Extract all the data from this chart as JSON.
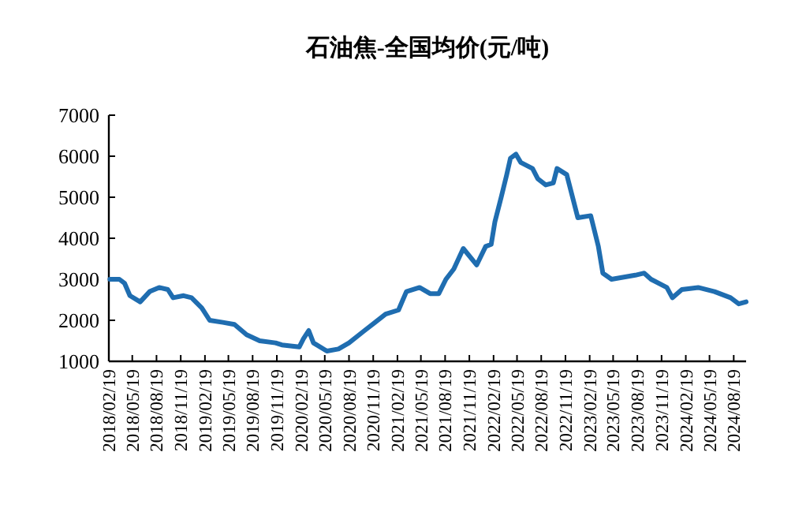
{
  "chart_data": {
    "type": "line",
    "title": "石油焦-全国均价(元/吨)",
    "x": [
      "2018-02-23",
      "2018-03-31",
      "2018-04-20",
      "2018-05-10",
      "2018-06-18",
      "2018-07-24",
      "2018-08-29",
      "2018-10-01",
      "2018-10-21",
      "2018-11-30",
      "2018-12-30",
      "2019-02-07",
      "2019-03-09",
      "2019-04-28",
      "2019-06-11",
      "2019-07-27",
      "2019-09-15",
      "2019-11-14",
      "2019-12-08",
      "2020-02-12",
      "2020-02-28",
      "2020-03-19",
      "2020-04-06",
      "2020-05-27",
      "2020-07-10",
      "2020-08-19",
      "2020-10-17",
      "2020-11-26",
      "2021-01-05",
      "2021-02-23",
      "2021-03-25",
      "2021-05-14",
      "2021-06-23",
      "2021-07-26",
      "2021-08-22",
      "2021-09-21",
      "2021-10-27",
      "2021-12-17",
      "2022-01-20",
      "2022-02-10",
      "2022-02-24",
      "2022-03-20",
      "2022-04-10",
      "2022-04-24",
      "2022-05-15",
      "2022-06-02",
      "2022-07-17",
      "2022-08-06",
      "2022-09-05",
      "2022-10-04",
      "2022-10-18",
      "2022-11-24",
      "2023-01-05",
      "2023-02-23",
      "2023-03-24",
      "2023-04-10",
      "2023-05-13",
      "2023-08-11",
      "2023-09-14",
      "2023-10-10",
      "2023-12-09",
      "2023-12-30",
      "2024-02-04",
      "2024-04-06",
      "2024-06-07",
      "2024-08-07",
      "2024-09-07",
      "2024-10-05"
    ],
    "series": [
      {
        "color": "#1f6db0",
        "values": [
          3000,
          3000,
          2900,
          2600,
          2450,
          2700,
          2800,
          2750,
          2550,
          2600,
          2550,
          2300,
          2000,
          1950,
          1900,
          1650,
          1500,
          1450,
          1400,
          1350,
          1550,
          1750,
          1450,
          1250,
          1300,
          1450,
          1750,
          1950,
          2150,
          2250,
          2700,
          2800,
          2650,
          2650,
          3000,
          3250,
          3750,
          3350,
          3800,
          3850,
          4400,
          5000,
          5550,
          5950,
          6050,
          5850,
          5700,
          5450,
          5300,
          5350,
          5700,
          5550,
          4500,
          4550,
          3800,
          3150,
          3000,
          3100,
          3150,
          3000,
          2800,
          2550,
          2750,
          2800,
          2700,
          2550,
          2400,
          2450
        ]
      }
    ],
    "xlim": [
      "2018-02-19",
      "2024-10-05"
    ],
    "xticks": [
      {
        "value": "2018-02-19",
        "label": "2018/02/19"
      },
      {
        "value": "2018-05-19",
        "label": "2018/05/19"
      },
      {
        "value": "2018-08-19",
        "label": "2018/08/19"
      },
      {
        "value": "2018-11-19",
        "label": "2018/11/19"
      },
      {
        "value": "2019-02-19",
        "label": "2019/02/19"
      },
      {
        "value": "2019-05-19",
        "label": "2019/05/19"
      },
      {
        "value": "2019-08-19",
        "label": "2019/08/19"
      },
      {
        "value": "2019-11-19",
        "label": "2019/11/19"
      },
      {
        "value": "2020-02-19",
        "label": "2020/02/19"
      },
      {
        "value": "2020-05-19",
        "label": "2020/05/19"
      },
      {
        "value": "2020-08-19",
        "label": "2020/08/19"
      },
      {
        "value": "2020-11-19",
        "label": "2020/11/19"
      },
      {
        "value": "2021-02-19",
        "label": "2021/02/19"
      },
      {
        "value": "2021-05-19",
        "label": "2021/05/19"
      },
      {
        "value": "2021-08-19",
        "label": "2021/08/19"
      },
      {
        "value": "2021-11-19",
        "label": "2021/11/19"
      },
      {
        "value": "2022-02-19",
        "label": "2022/02/19"
      },
      {
        "value": "2022-05-19",
        "label": "2022/05/19"
      },
      {
        "value": "2022-08-19",
        "label": "2022/08/19"
      },
      {
        "value": "2022-11-19",
        "label": "2022/11/19"
      },
      {
        "value": "2023-02-19",
        "label": "2023/02/19"
      },
      {
        "value": "2023-05-19",
        "label": "2023/05/19"
      },
      {
        "value": "2023-08-19",
        "label": "2023/08/19"
      },
      {
        "value": "2023-11-19",
        "label": "2023/11/19"
      },
      {
        "value": "2024-02-19",
        "label": "2024/02/19"
      },
      {
        "value": "2024-05-19",
        "label": "2024/05/19"
      },
      {
        "value": "2024-08-19",
        "label": "2024/08/19"
      }
    ],
    "ylim": [
      1000,
      7000
    ],
    "yticks": [
      1000,
      2000,
      3000,
      4000,
      5000,
      6000,
      7000
    ],
    "grid": false,
    "marker": "none",
    "line_style": "solid"
  }
}
